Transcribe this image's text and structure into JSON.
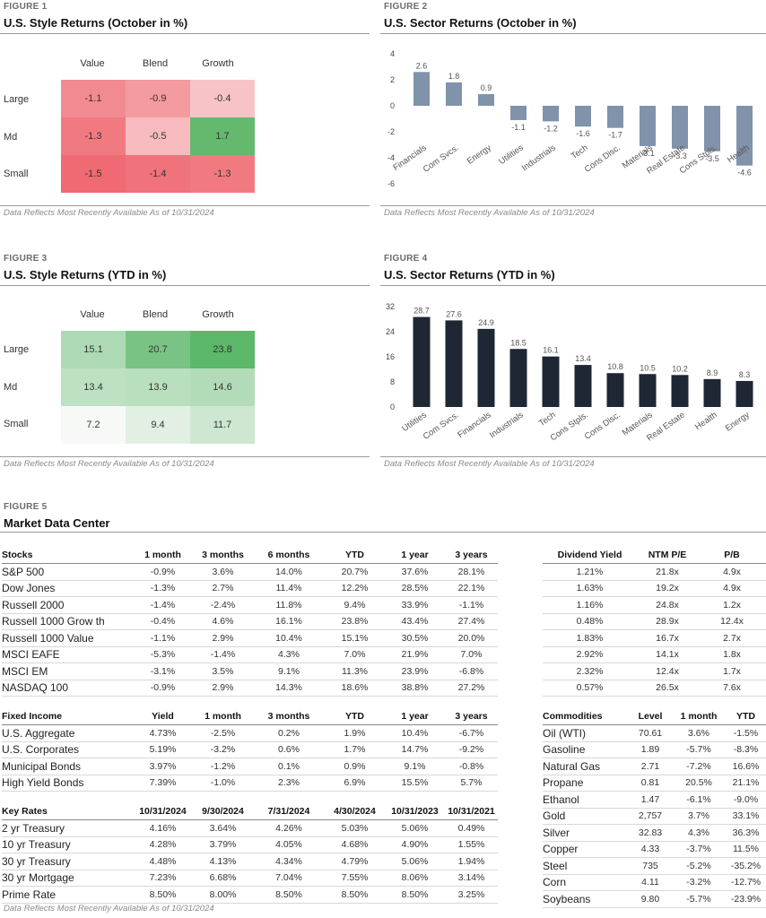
{
  "fig1": {
    "label": "FIGURE 1",
    "title": "U.S. Style Returns (October in %)",
    "note": "Data Reflects Most Recently Available As of 10/31/2024",
    "columns": [
      "Value",
      "Blend",
      "Growth"
    ],
    "rows": [
      "Large",
      "Md",
      "Small"
    ],
    "values": [
      [
        "-1.1",
        "-0.9",
        "-0.4"
      ],
      [
        "-1.3",
        "-0.5",
        "1.7"
      ],
      [
        "-1.5",
        "-1.4",
        "-1.3"
      ]
    ]
  },
  "fig2": {
    "label": "FIGURE 2",
    "title": "U.S. Sector Returns (October in %)",
    "note": "Data Reflects Most Recently Available As of 10/31/2024"
  },
  "fig3": {
    "label": "FIGURE 3",
    "title": "U.S. Style Returns (YTD in %)",
    "note": "Data Reflects Most Recently Available As of 10/31/2024",
    "columns": [
      "Value",
      "Blend",
      "Growth"
    ],
    "rows": [
      "Large",
      "Md",
      "Small"
    ],
    "values": [
      [
        "15.1",
        "20.7",
        "23.8"
      ],
      [
        "13.4",
        "13.9",
        "14.6"
      ],
      [
        "7.2",
        "9.4",
        "11.7"
      ]
    ]
  },
  "fig4": {
    "label": "FIGURE 4",
    "title": "U.S. Sector Returns (YTD in %)",
    "note": "Data Reflects Most Recently Available As of 10/31/2024"
  },
  "chart_data": [
    {
      "type": "heatmap",
      "title": "U.S. Style Returns (October in %)",
      "x": [
        "Value",
        "Blend",
        "Growth"
      ],
      "y": [
        "Large",
        "Md",
        "Small"
      ],
      "values": [
        [
          -1.1,
          -0.9,
          -0.4
        ],
        [
          -1.3,
          -0.5,
          1.7
        ],
        [
          -1.5,
          -1.4,
          -1.3
        ]
      ]
    },
    {
      "type": "bar",
      "title": "U.S. Sector Returns (October in %)",
      "categories": [
        "Financials",
        "Com Svcs.",
        "Energy",
        "Utilities",
        "Industrials",
        "Tech",
        "Cons Disc.",
        "Materials",
        "Real Estate",
        "Cons Stpls.",
        "Health"
      ],
      "values": [
        2.6,
        1.8,
        0.9,
        -1.1,
        -1.2,
        -1.6,
        -1.7,
        -3.1,
        -3.3,
        -3.5,
        -4.6
      ],
      "labels": [
        "2.6",
        "1.8",
        "0.9",
        "-1.1",
        "-1.2",
        "-1.6",
        "-1.7",
        "-3.1",
        "-3.3",
        "-3.5",
        "-4.6"
      ],
      "ylim": [
        -6,
        4
      ],
      "yticks": [
        4,
        2,
        0,
        -2,
        -4,
        -6
      ],
      "color": "#8093ab"
    },
    {
      "type": "heatmap",
      "title": "U.S. Style Returns (YTD in %)",
      "x": [
        "Value",
        "Blend",
        "Growth"
      ],
      "y": [
        "Large",
        "Md",
        "Small"
      ],
      "values": [
        [
          15.1,
          20.7,
          23.8
        ],
        [
          13.4,
          13.9,
          14.6
        ],
        [
          7.2,
          9.4,
          11.7
        ]
      ]
    },
    {
      "type": "bar",
      "title": "U.S. Sector Returns (YTD in %)",
      "categories": [
        "Utilities",
        "Com Svcs.",
        "Financials",
        "Industrials",
        "Tech",
        "Cons Stpls.",
        "Cons Disc.",
        "Materials",
        "Real Estate",
        "Health",
        "Energy"
      ],
      "values": [
        28.7,
        27.6,
        24.9,
        18.5,
        16.1,
        13.4,
        10.8,
        10.5,
        10.2,
        8.9,
        8.3
      ],
      "labels": [
        "28.7",
        "27.6",
        "24.9",
        "18.5",
        "16.1",
        "13.4",
        "10.8",
        "10.5",
        "10.2",
        "8.9",
        "8.3"
      ],
      "ylim": [
        0,
        32
      ],
      "yticks": [
        32,
        24,
        16,
        8,
        0
      ],
      "color": "#1e2733"
    }
  ],
  "fig5": {
    "label": "FIGURE 5",
    "title": "Market Data Center",
    "note": "Data Reflects Most Recently Available As of 10/31/2024",
    "stocks": {
      "headers": [
        "Stocks",
        "1 month",
        "3 months",
        "6 months",
        "YTD",
        "1 year",
        "3 years"
      ],
      "rows": [
        [
          "S&P 500",
          "-0.9%",
          "3.6%",
          "14.0%",
          "20.7%",
          "37.6%",
          "28.1%"
        ],
        [
          "Dow Jones",
          "-1.3%",
          "2.7%",
          "11.4%",
          "12.2%",
          "28.5%",
          "22.1%"
        ],
        [
          "Russell 2000",
          "-1.4%",
          "-2.4%",
          "11.8%",
          "9.4%",
          "33.9%",
          "-1.1%"
        ],
        [
          "Russell 1000 Grow th",
          "-0.4%",
          "4.6%",
          "16.1%",
          "23.8%",
          "43.4%",
          "27.4%"
        ],
        [
          "Russell 1000 Value",
          "-1.1%",
          "2.9%",
          "10.4%",
          "15.1%",
          "30.5%",
          "20.0%"
        ],
        [
          "MSCI EAFE",
          "-5.3%",
          "-1.4%",
          "4.3%",
          "7.0%",
          "21.9%",
          "7.0%"
        ],
        [
          "MSCI EM",
          "-3.1%",
          "3.5%",
          "9.1%",
          "11.3%",
          "23.9%",
          "-6.8%"
        ],
        [
          "NASDAQ 100",
          "-0.9%",
          "2.9%",
          "14.3%",
          "18.6%",
          "38.8%",
          "27.2%"
        ]
      ]
    },
    "valuation": {
      "headers": [
        "Dividend Yield",
        "NTM P/E",
        "P/B"
      ],
      "rows": [
        [
          "1.21%",
          "21.8x",
          "4.9x"
        ],
        [
          "1.63%",
          "19.2x",
          "4.9x"
        ],
        [
          "1.16%",
          "24.8x",
          "1.2x"
        ],
        [
          "0.48%",
          "28.9x",
          "12.4x"
        ],
        [
          "1.83%",
          "16.7x",
          "2.7x"
        ],
        [
          "2.92%",
          "14.1x",
          "1.8x"
        ],
        [
          "2.32%",
          "12.4x",
          "1.7x"
        ],
        [
          "0.57%",
          "26.5x",
          "7.6x"
        ]
      ]
    },
    "fixed": {
      "headers": [
        "Fixed Income",
        "Yield",
        "1 month",
        "3 months",
        "YTD",
        "1 year",
        "3 years"
      ],
      "rows": [
        [
          "U.S. Aggregate",
          "4.73%",
          "-2.5%",
          "0.2%",
          "1.9%",
          "10.4%",
          "-6.7%"
        ],
        [
          "U.S. Corporates",
          "5.19%",
          "-3.2%",
          "0.6%",
          "1.7%",
          "14.7%",
          "-9.2%"
        ],
        [
          "Municipal Bonds",
          "3.97%",
          "-1.2%",
          "0.1%",
          "0.9%",
          "9.1%",
          "-0.8%"
        ],
        [
          "High Yield Bonds",
          "7.39%",
          "-1.0%",
          "2.3%",
          "6.9%",
          "15.5%",
          "5.7%"
        ]
      ]
    },
    "rates": {
      "headers": [
        "Key Rates",
        "10/31/2024",
        "9/30/2024",
        "7/31/2024",
        "4/30/2024",
        "10/31/2023",
        "10/31/2021"
      ],
      "rows": [
        [
          "2 yr Treasury",
          "4.16%",
          "3.64%",
          "4.26%",
          "5.03%",
          "5.06%",
          "0.49%"
        ],
        [
          "10 yr Treasury",
          "4.28%",
          "3.79%",
          "4.05%",
          "4.68%",
          "4.90%",
          "1.55%"
        ],
        [
          "30 yr Treasury",
          "4.48%",
          "4.13%",
          "4.34%",
          "4.79%",
          "5.06%",
          "1.94%"
        ],
        [
          "30 yr Mortgage",
          "7.23%",
          "6.68%",
          "7.04%",
          "7.55%",
          "8.06%",
          "3.14%"
        ],
        [
          "Prime Rate",
          "8.50%",
          "8.00%",
          "8.50%",
          "8.50%",
          "8.50%",
          "3.25%"
        ]
      ]
    },
    "commodities": {
      "headers": [
        "Commodities",
        "Level",
        "1 month",
        "YTD"
      ],
      "rows": [
        [
          "Oil (WTI)",
          "70.61",
          "3.6%",
          "-1.5%"
        ],
        [
          "Gasoline",
          "1.89",
          "-5.7%",
          "-8.3%"
        ],
        [
          "Natural Gas",
          "2.71",
          "-7.2%",
          "16.6%"
        ],
        [
          "Propane",
          "0.81",
          "20.5%",
          "21.1%"
        ],
        [
          "Ethanol",
          "1.47",
          "-6.1%",
          "-9.0%"
        ],
        [
          "Gold",
          "2,757",
          "3.7%",
          "33.1%"
        ],
        [
          "Silver",
          "32.83",
          "4.3%",
          "36.3%"
        ],
        [
          "Copper",
          "4.33",
          "-3.7%",
          "11.5%"
        ],
        [
          "Steel",
          "735",
          "-5.2%",
          "-35.2%"
        ],
        [
          "Corn",
          "4.11",
          "-3.2%",
          "-12.7%"
        ],
        [
          "Soybeans",
          "9.80",
          "-5.7%",
          "-23.9%"
        ]
      ]
    }
  }
}
